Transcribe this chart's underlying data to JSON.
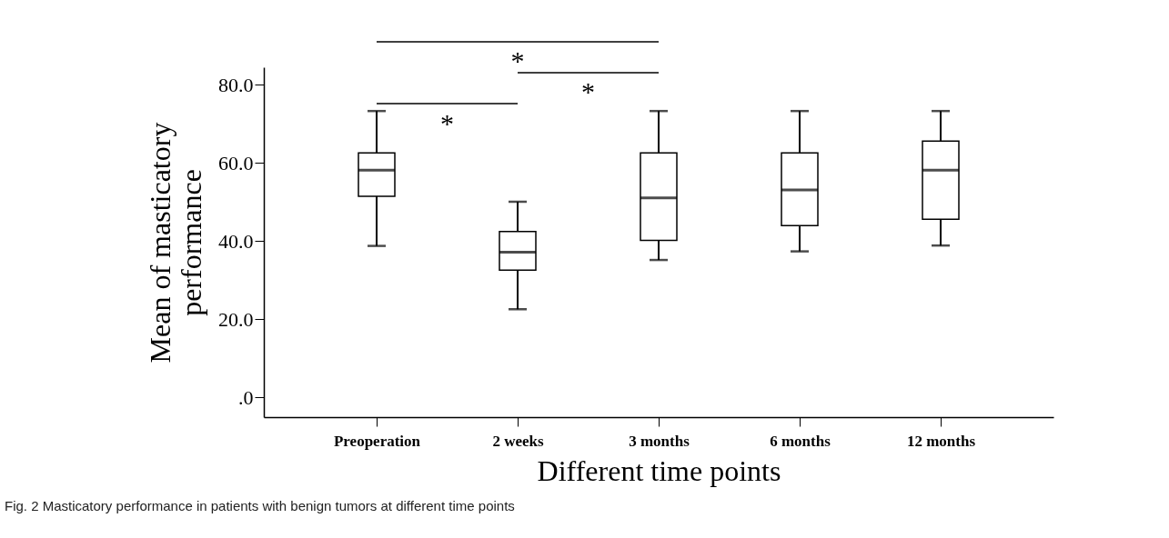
{
  "chart_data": {
    "type": "box",
    "xlabel": "Different time points",
    "ylabel": "Mean of masticatory performance",
    "categories": [
      "Preoperation",
      "2 weeks",
      "3 months",
      "6 months",
      "12 months"
    ],
    "boxes": [
      {
        "low": 38.8,
        "q1": 51.5,
        "median": 58.2,
        "q3": 62.6,
        "high": 73.3
      },
      {
        "low": 22.6,
        "q1": 32.6,
        "median": 37.2,
        "q3": 42.5,
        "high": 50.1
      },
      {
        "low": 35.2,
        "q1": 40.2,
        "median": 51.1,
        "q3": 62.6,
        "high": 73.3
      },
      {
        "low": 37.4,
        "q1": 44.0,
        "median": 53.1,
        "q3": 62.6,
        "high": 73.3
      },
      {
        "low": 38.9,
        "q1": 45.6,
        "median": 58.2,
        "q3": 65.6,
        "high": 73.3
      }
    ],
    "color": "#000000",
    "ylim": [
      -5,
      84.5
    ],
    "yticks": [
      {
        "value": 0,
        "label": ".0"
      },
      {
        "value": 20,
        "label": "20.0"
      },
      {
        "value": 40,
        "label": "40.0"
      },
      {
        "value": 60,
        "label": "60.0"
      },
      {
        "value": 80,
        "label": "80.0"
      }
    ],
    "grid": false,
    "annotations": [
      "*",
      "*",
      "*",
      "Fig. 2  Masticatory performance in patients with benign tumors at different time points"
    ]
  }
}
